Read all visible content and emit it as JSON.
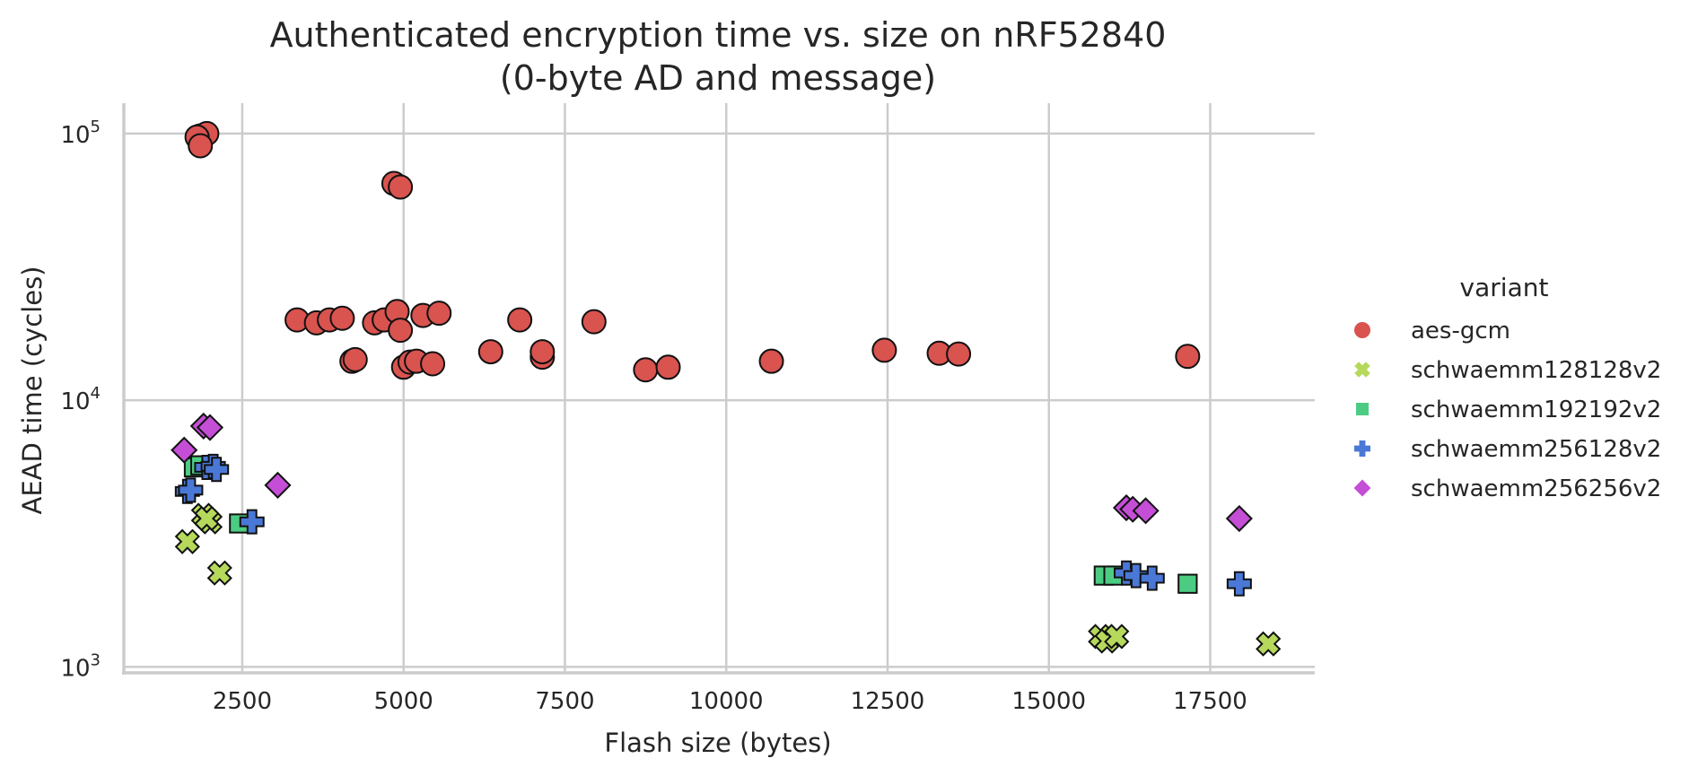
{
  "chart_data": {
    "type": "scatter",
    "title": [
      "Authenticated encryption time vs. size on nRF52840",
      "(0-byte AD and message)"
    ],
    "xlabel": "Flash size (bytes)",
    "ylabel": "AEAD time (cycles)",
    "xlim": [
      665,
      19120
    ],
    "ylim": [
      950,
      130000
    ],
    "yscale": "log",
    "xticks": [
      2500,
      5000,
      7500,
      10000,
      12500,
      15000,
      17500
    ],
    "xtick_labels": [
      "2500",
      "5000",
      "7500",
      "10000",
      "12500",
      "15000",
      "17500"
    ],
    "yticks": [
      1000,
      10000,
      100000
    ],
    "ytick_labels": [
      {
        "base": "10",
        "exp": "3"
      },
      {
        "base": "10",
        "exp": "4"
      },
      {
        "base": "10",
        "exp": "5"
      }
    ],
    "grid": true,
    "legend": {
      "title": "variant",
      "position": "right"
    },
    "series": [
      {
        "name": "aes-gcm",
        "marker": "circle",
        "color": "#d9534f",
        "points": [
          [
            1850,
            98000
          ],
          [
            1950,
            100000
          ],
          [
            1800,
            97000
          ],
          [
            1850,
            90000
          ],
          [
            4850,
            65000
          ],
          [
            4950,
            63000
          ],
          [
            3350,
            20000
          ],
          [
            3650,
            19500
          ],
          [
            3850,
            20000
          ],
          [
            4050,
            20300
          ],
          [
            4550,
            19500
          ],
          [
            4700,
            20000
          ],
          [
            4900,
            21500
          ],
          [
            4950,
            18300
          ],
          [
            5300,
            20800
          ],
          [
            5550,
            21200
          ],
          [
            6800,
            20000
          ],
          [
            7950,
            19700
          ],
          [
            4200,
            14000
          ],
          [
            4250,
            14200
          ],
          [
            5000,
            13300
          ],
          [
            5100,
            13900
          ],
          [
            5200,
            14000
          ],
          [
            5450,
            13700
          ],
          [
            6350,
            15200
          ],
          [
            7150,
            14500
          ],
          [
            7150,
            15200
          ],
          [
            8750,
            13000
          ],
          [
            9100,
            13300
          ],
          [
            10700,
            14000
          ],
          [
            12450,
            15400
          ],
          [
            13300,
            15000
          ],
          [
            13600,
            14900
          ],
          [
            17150,
            14600
          ]
        ]
      },
      {
        "name": "schwaemm128128v2",
        "marker": "x",
        "color": "#b6d95c",
        "points": [
          [
            1650,
            2950
          ],
          [
            1900,
            3700
          ],
          [
            2000,
            3500
          ],
          [
            1950,
            3600
          ],
          [
            2150,
            2250
          ],
          [
            15800,
            1300
          ],
          [
            15900,
            1250
          ],
          [
            16050,
            1300
          ],
          [
            18400,
            1220
          ]
        ]
      },
      {
        "name": "schwaemm192192v2",
        "marker": "square",
        "color": "#4ccc83",
        "points": [
          [
            1750,
            5600
          ],
          [
            1850,
            5700
          ],
          [
            2450,
            3450
          ],
          [
            15850,
            2200
          ],
          [
            16000,
            2200
          ],
          [
            17150,
            2050
          ]
        ]
      },
      {
        "name": "schwaemm256128v2",
        "marker": "plus",
        "color": "#4a78d6",
        "points": [
          [
            1650,
            4550
          ],
          [
            1700,
            4600
          ],
          [
            1950,
            5600
          ],
          [
            2050,
            5650
          ],
          [
            2100,
            5500
          ],
          [
            2650,
            3500
          ],
          [
            16200,
            2250
          ],
          [
            16350,
            2200
          ],
          [
            16600,
            2150
          ],
          [
            17950,
            2050
          ]
        ]
      },
      {
        "name": "schwaemm256256v2",
        "marker": "diamond",
        "color": "#c44ed6",
        "points": [
          [
            1600,
            6500
          ],
          [
            1900,
            8000
          ],
          [
            2000,
            7900
          ],
          [
            3050,
            4800
          ],
          [
            16200,
            3950
          ],
          [
            16300,
            3900
          ],
          [
            16500,
            3850
          ],
          [
            17950,
            3600
          ]
        ]
      }
    ]
  }
}
